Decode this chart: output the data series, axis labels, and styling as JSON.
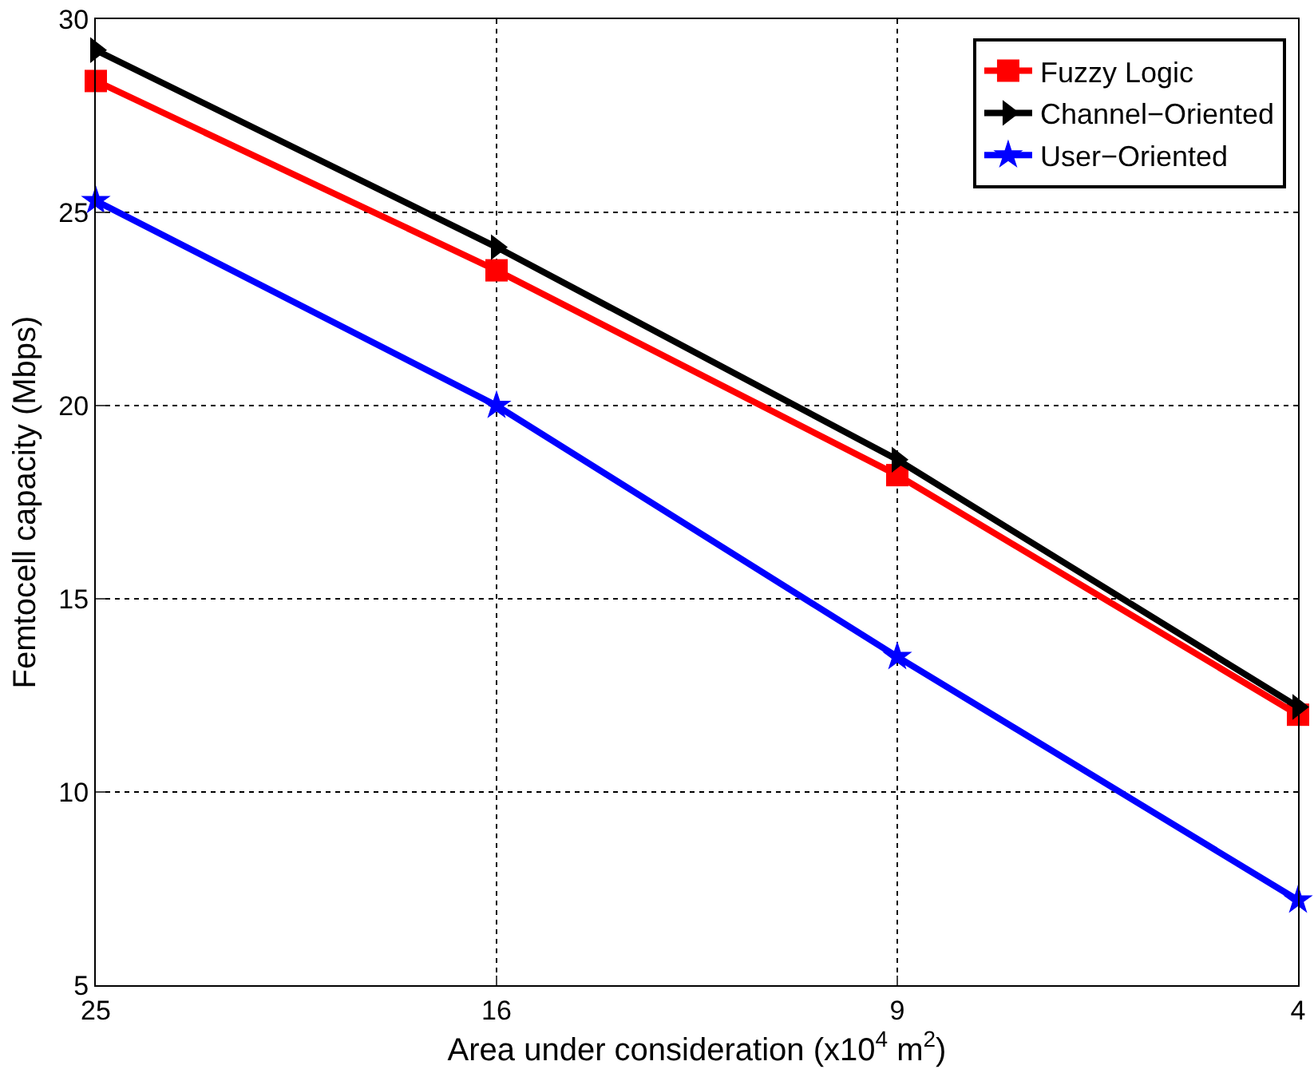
{
  "chart_data": {
    "type": "line",
    "xlabel": "Area under consideration (x10$^{4}$ m$^{2}$)",
    "ylabel": "Femtocell capacity (Mbps)",
    "categories": [
      "25",
      "16",
      "9",
      "4"
    ],
    "series": [
      {
        "name": "Fuzzy Logic",
        "color": "#ff0000",
        "marker": "square",
        "values": [
          28.4,
          23.5,
          18.2,
          12.0
        ]
      },
      {
        "name": "Channel−Oriented",
        "color": "#000000",
        "marker": "triangle",
        "values": [
          29.2,
          24.1,
          18.6,
          12.2
        ]
      },
      {
        "name": "User−Oriented",
        "color": "#0000ff",
        "marker": "star",
        "values": [
          25.3,
          20.0,
          13.5,
          7.2
        ]
      }
    ],
    "ylim": [
      5,
      30
    ],
    "yticks": [
      5,
      10,
      15,
      20,
      25,
      30
    ],
    "grid": true,
    "legend": "top right",
    "line_style": "solid"
  }
}
